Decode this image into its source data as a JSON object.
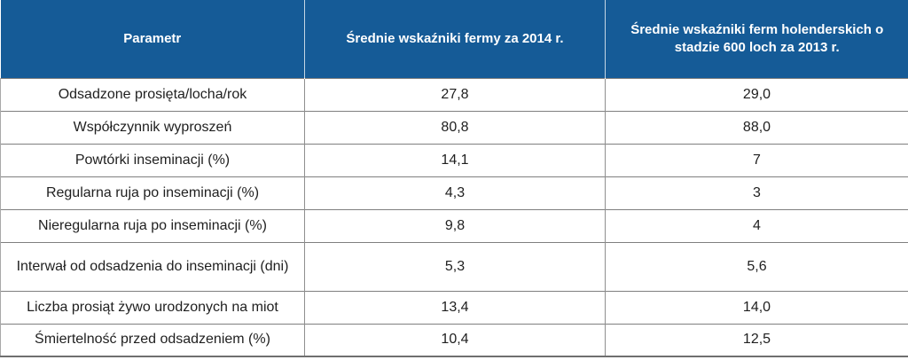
{
  "colors": {
    "header_bg": "#155b97",
    "header_text": "#ffffff",
    "body_text": "#1f1f1f",
    "grid_line": "#7f7f7f"
  },
  "table": {
    "columns": [
      {
        "label": "Parametr"
      },
      {
        "label": "Średnie wskaźniki fermy za 2014 r."
      },
      {
        "label": "Średnie wskaźniki ferm holenderskich o stadzie 600 loch za 2013 r."
      }
    ],
    "rows": [
      {
        "param": "Odsadzone prosięta/locha/rok",
        "farm_2014": "27,8",
        "dutch_2013": "29,0"
      },
      {
        "param": "Współczynnik wyproszeń",
        "farm_2014": "80,8",
        "dutch_2013": "88,0"
      },
      {
        "param": "Powtórki inseminacji (%)",
        "farm_2014": "14,1",
        "dutch_2013": "7"
      },
      {
        "param": "Regularna ruja po inseminacji (%)",
        "farm_2014": "4,3",
        "dutch_2013": "3"
      },
      {
        "param": "Nieregularna ruja po inseminacji (%)",
        "farm_2014": "9,8",
        "dutch_2013": "4"
      },
      {
        "param": "Interwał od odsadzenia do inseminacji (dni)",
        "farm_2014": "5,3",
        "dutch_2013": "5,6"
      },
      {
        "param": "Liczba prosiąt żywo urodzonych na miot",
        "farm_2014": "13,4",
        "dutch_2013": "14,0"
      },
      {
        "param": "Śmiertelność przed odsadzeniem (%)",
        "farm_2014": "10,4",
        "dutch_2013": "12,5"
      }
    ]
  },
  "chart_data": {
    "type": "table",
    "title": "",
    "columns": [
      "Parametr",
      "Średnie wskaźniki fermy za 2014 r.",
      "Średnie wskaźniki ferm holenderskich o stadzie 600 loch za 2013 r."
    ],
    "categories": [
      "Odsadzone prosięta/locha/rok",
      "Współczynnik wyproszeń",
      "Powtórki inseminacji (%)",
      "Regularna ruja po inseminacji (%)",
      "Nieregularna ruja po inseminacji (%)",
      "Interwał od odsadzenia do inseminacji (dni)",
      "Liczba prosiąt żywo urodzonych na miot",
      "Śmiertelność przed odsadzeniem (%)"
    ],
    "series": [
      {
        "name": "Średnie wskaźniki fermy za 2014 r.",
        "values": [
          27.8,
          80.8,
          14.1,
          4.3,
          9.8,
          5.3,
          13.4,
          10.4
        ]
      },
      {
        "name": "Średnie wskaźniki ferm holenderskich o stadzie 600 loch za 2013 r.",
        "values": [
          29.0,
          88.0,
          7,
          3,
          4,
          5.6,
          14.0,
          12.5
        ]
      }
    ]
  }
}
